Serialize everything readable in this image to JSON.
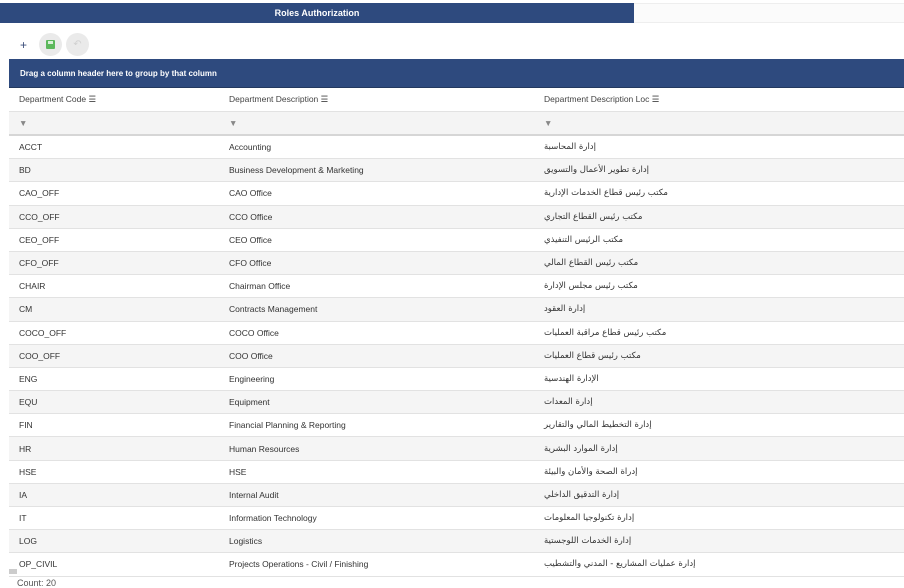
{
  "title": "Roles Authorization",
  "toolbar": {
    "add": "+",
    "save_icon": "save-icon",
    "undo_icon": "undo-icon"
  },
  "group_panel": "Drag a column header here to group by that column",
  "columns": [
    "Department Code",
    "Department Description",
    "Department Description Loc"
  ],
  "rows": [
    [
      "ACCT",
      "Accounting",
      "إدارة المحاسبة"
    ],
    [
      "BD",
      "Business Development & Marketing",
      "إدارة تطوير الأعمال والتسويق"
    ],
    [
      "CAO_OFF",
      "CAO Office",
      "مكتب رئيس قطاع الخدمات الإدارية"
    ],
    [
      "CCO_OFF",
      "CCO Office",
      "مكتب رئيس القطاع التجاري"
    ],
    [
      "CEO_OFF",
      "CEO Office",
      "مكتب الرئيس التنفيذي"
    ],
    [
      "CFO_OFF",
      "CFO Office",
      "مكتب رئيس القطاع المالي"
    ],
    [
      "CHAIR",
      "Chairman Office",
      "مكتب رئيس مجلس الإدارة"
    ],
    [
      "CM",
      "Contracts Management",
      "إدارة العقود"
    ],
    [
      "COCO_OFF",
      "COCO Office",
      "مكتب رئيس قطاع مراقبة العمليات"
    ],
    [
      "COO_OFF",
      "COO Office",
      "مكتب رئيس قطاع العمليات"
    ],
    [
      "ENG",
      "Engineering",
      "الإدارة الهندسية"
    ],
    [
      "EQU",
      "Equipment",
      "إدارة المعدات"
    ],
    [
      "FIN",
      "Financial Planning & Reporting",
      "إدارة التخطيط المالي والتقارير"
    ],
    [
      "HR",
      "Human Resources",
      "إدارة الموارد البشرية"
    ],
    [
      "HSE",
      "HSE",
      "إدراة الصحة والأمان والبيئة"
    ],
    [
      "IA",
      "Internal Audit",
      "إدارة التدقيق الداخلي"
    ],
    [
      "IT",
      "Information Technology",
      "إدارة تكنولوجيا المعلومات"
    ],
    [
      "LOG",
      "Logistics",
      "إدارة الخدمات اللوجستية"
    ],
    [
      "OP_CIVIL",
      "Projects Operations - Civil / Finishing",
      "إدارة عمليات المشاريع - المدني والتشطيب"
    ]
  ],
  "footer": {
    "count": "Count: 20"
  },
  "colors": {
    "header": "#2e4a7e",
    "save": "#5cb85c"
  }
}
